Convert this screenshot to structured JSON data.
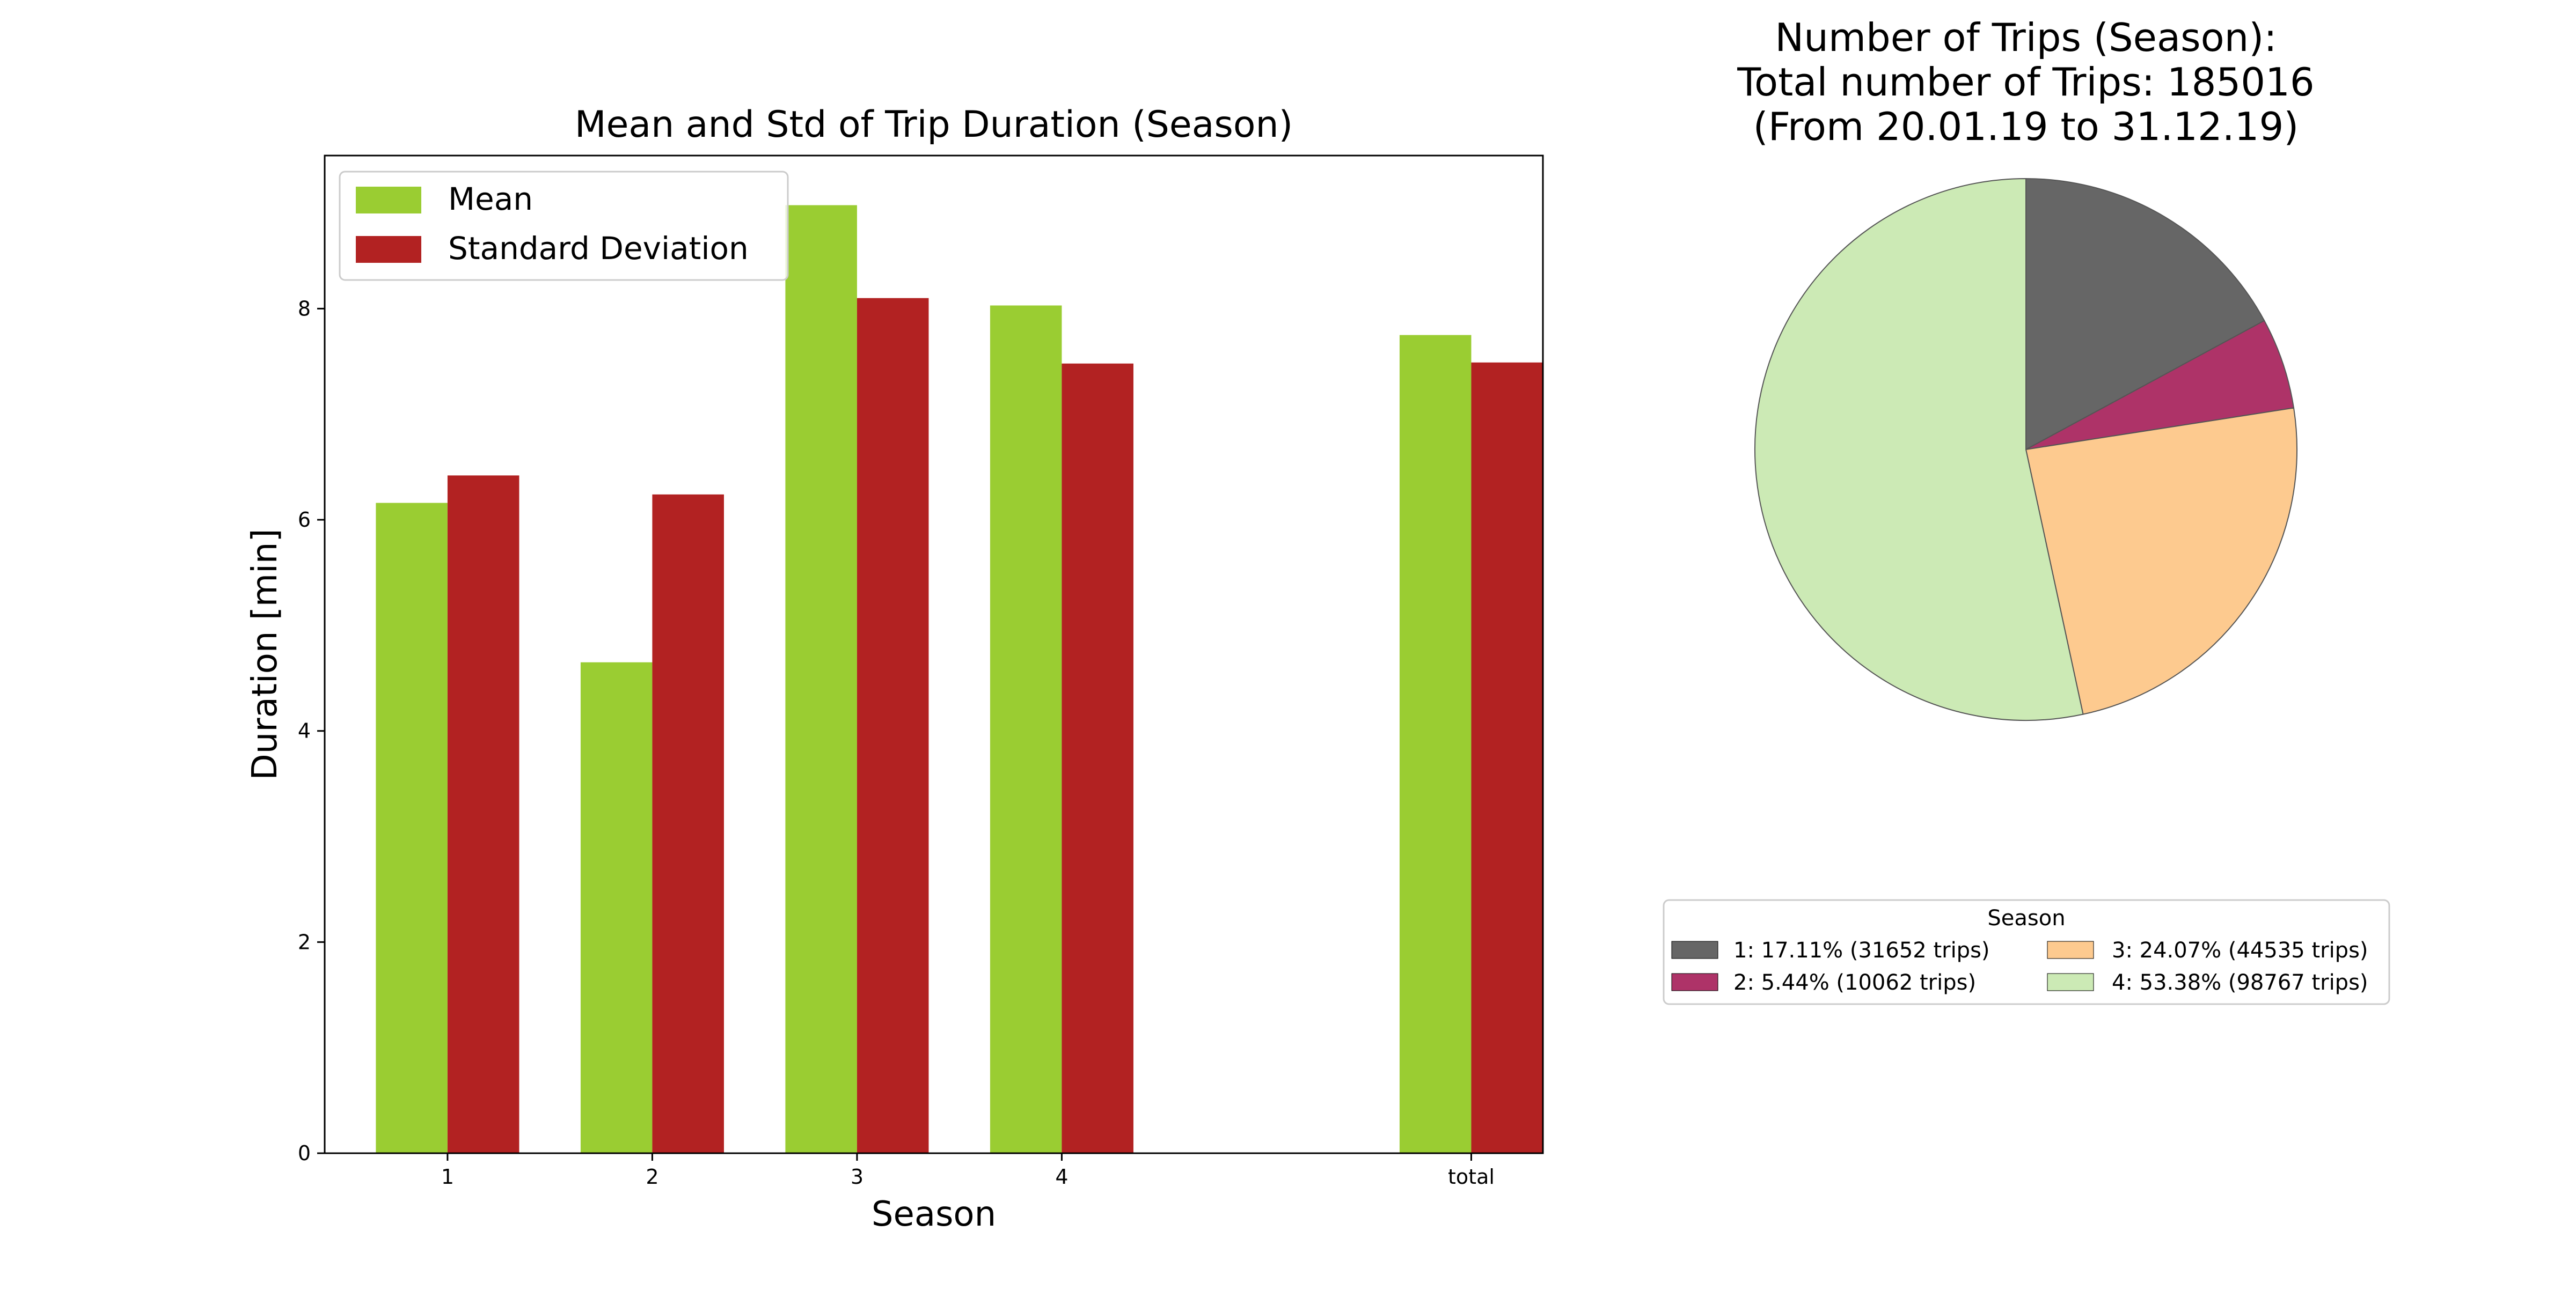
{
  "chart_data": [
    {
      "type": "bar",
      "title": "Mean and Std of Trip Duration (Season)",
      "xlabel": "Season",
      "ylabel": "Duration [min]",
      "categories": [
        "1",
        "2",
        "3",
        "4",
        "total"
      ],
      "ylim": [
        0,
        9.45
      ],
      "yticks": [
        "0",
        "2",
        "4",
        "6",
        "8"
      ],
      "grid": false,
      "legend_position": "top-left",
      "series": [
        {
          "name": "Mean",
          "color": "#9acd32",
          "values": [
            6.16,
            4.65,
            8.98,
            8.03,
            7.75
          ]
        },
        {
          "name": "Standard Deviation",
          "color": "#b22222",
          "values": [
            6.42,
            6.24,
            8.1,
            7.48,
            7.49
          ]
        }
      ]
    },
    {
      "type": "pie",
      "title_lines": [
        "Number of Trips (Season):",
        "Total number of Trips: 185016",
        "(From 20.01.19 to 31.12.19)"
      ],
      "legend_title": "Season",
      "legend_position": "below",
      "slices": [
        {
          "label": "1: 17.11% (31652 trips)",
          "value": 31652,
          "color": "#666666"
        },
        {
          "label": "2: 5.44% (10062 trips)",
          "value": 10062,
          "color": "#ae3368"
        },
        {
          "label": "3: 24.07% (44535 trips)",
          "value": 44535,
          "color": "#fdca8f"
        },
        {
          "label": "4: 53.38% (98767 trips)",
          "value": 98767,
          "color": "#cceab5"
        }
      ]
    }
  ]
}
